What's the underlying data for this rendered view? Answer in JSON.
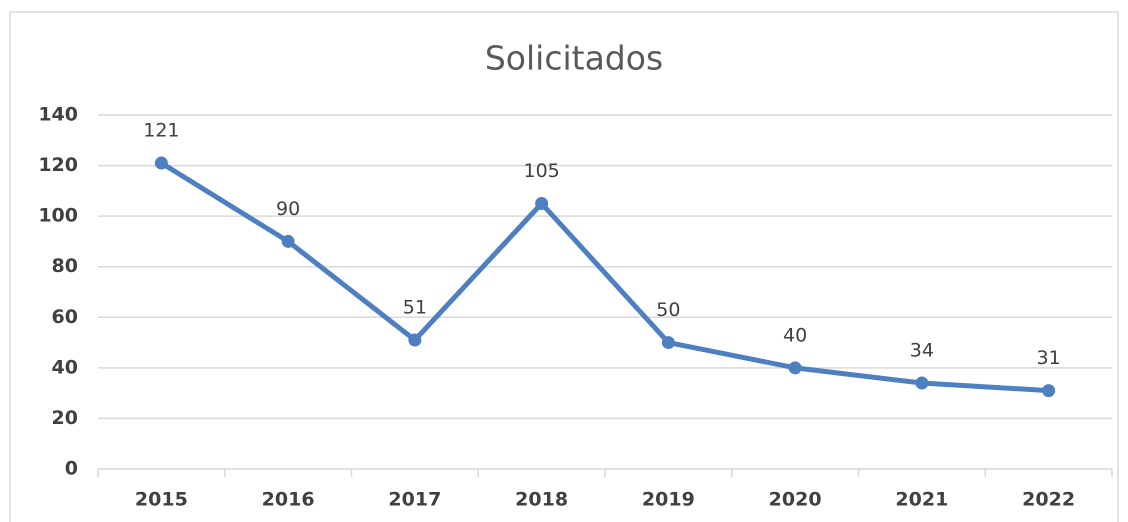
{
  "chart_data": {
    "type": "line",
    "title": "Solicitados",
    "categories": [
      "2015",
      "2016",
      "2017",
      "2018",
      "2019",
      "2020",
      "2021",
      "2022"
    ],
    "values": [
      121,
      90,
      51,
      105,
      50,
      40,
      34,
      31
    ],
    "color": "#4e7fc0",
    "ylim": [
      0,
      140
    ],
    "yticks": [
      0,
      20,
      40,
      60,
      80,
      100,
      120,
      140
    ],
    "grid": true
  }
}
